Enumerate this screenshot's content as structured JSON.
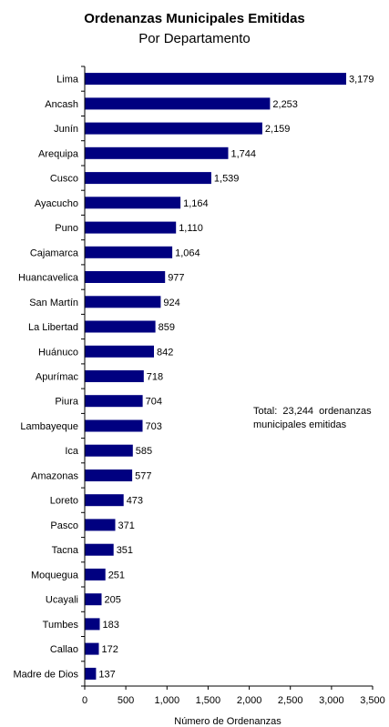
{
  "chart_data": {
    "type": "bar",
    "orientation": "horizontal",
    "title": "Ordenanzas Municipales Emitidas",
    "subtitle": "Por Departamento",
    "xlabel": "Número de Ordenanzas",
    "ylabel": "",
    "xlim": [
      0,
      3500
    ],
    "x_ticks": [
      0,
      500,
      1000,
      1500,
      2000,
      2500,
      3000,
      3500
    ],
    "x_tick_labels": [
      "0",
      "500",
      "1,000",
      "1,500",
      "2,000",
      "2,500",
      "3,000",
      "3,500"
    ],
    "grid": false,
    "bar_color": "#000080",
    "categories": [
      "Lima",
      "Ancash",
      "Junín",
      "Arequipa",
      "Cusco",
      "Ayacucho",
      "Puno",
      "Cajamarca",
      "Huancavelica",
      "San Martín",
      "La Libertad",
      "Huánuco",
      "Apurímac",
      "Piura",
      "Lambayeque",
      "Ica",
      "Amazonas",
      "Loreto",
      "Pasco",
      "Tacna",
      "Moquegua",
      "Ucayali",
      "Tumbes",
      "Callao",
      "Madre de Dios"
    ],
    "values": [
      3179,
      2253,
      2159,
      1744,
      1539,
      1164,
      1110,
      1064,
      977,
      924,
      859,
      842,
      718,
      704,
      703,
      585,
      577,
      473,
      371,
      351,
      251,
      205,
      183,
      172,
      137
    ],
    "value_labels": [
      "3,179",
      "2,253",
      "2,159",
      "1,744",
      "1,539",
      "1,164",
      "1,110",
      "1,064",
      "977",
      "924",
      "859",
      "842",
      "718",
      "704",
      "703",
      "585",
      "577",
      "473",
      "371",
      "351",
      "251",
      "205",
      "183",
      "172",
      "137"
    ],
    "annotation": {
      "line1": "Total:  23,244  ordenanzas",
      "line2": "municipales emitidas"
    }
  }
}
